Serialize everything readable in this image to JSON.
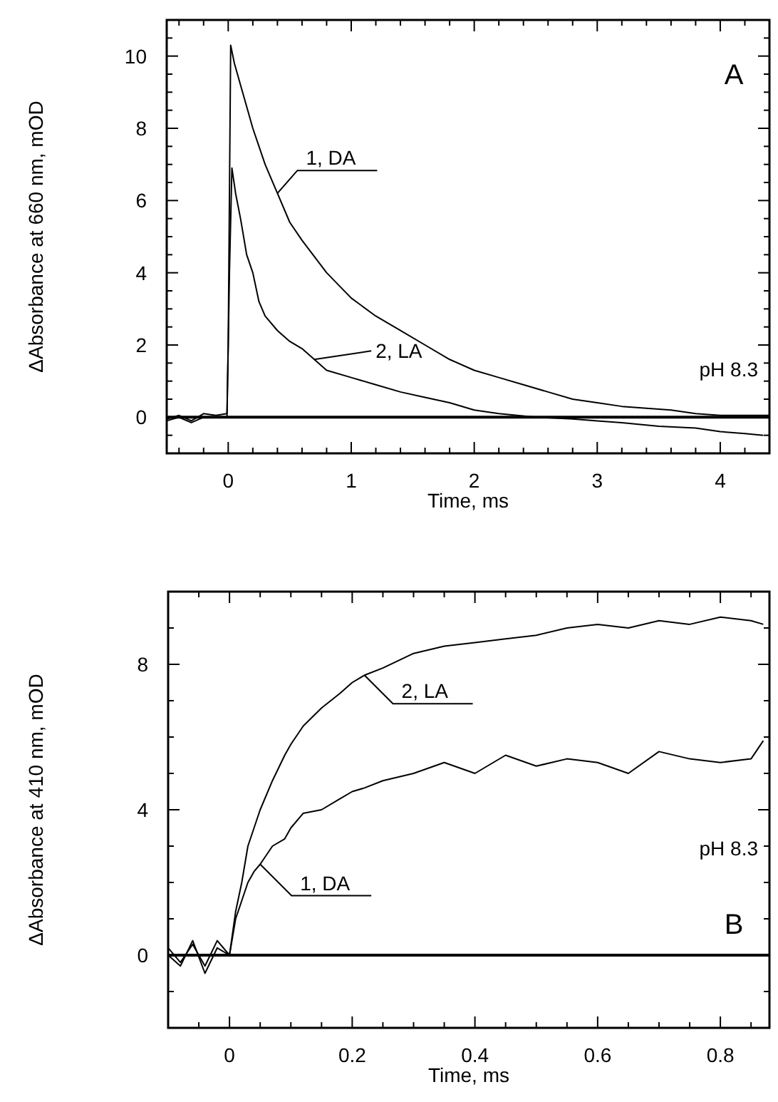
{
  "chart_data": [
    {
      "type": "line",
      "xlabel": "Time, ms",
      "ylabel": "ΔAbsorbance at 660 nm, mOD",
      "xlim": [
        -0.5,
        4.4
      ],
      "ylim": [
        -1,
        11
      ],
      "xticks": [
        {
          "value": -0.4,
          "label": null
        },
        {
          "value": -0.2,
          "label": null
        },
        0,
        {
          "value": 0.2,
          "label": null
        },
        {
          "value": 0.4,
          "label": null
        },
        {
          "value": 0.6,
          "label": null
        },
        {
          "value": 0.8,
          "label": null
        },
        1,
        {
          "value": 1.2,
          "label": null
        },
        {
          "value": 1.4,
          "label": null
        },
        {
          "value": 1.6,
          "label": null
        },
        {
          "value": 1.8,
          "label": null
        },
        2,
        {
          "value": 2.2,
          "label": null
        },
        {
          "value": 2.4,
          "label": null
        },
        {
          "value": 2.6,
          "label": null
        },
        {
          "value": 2.8,
          "label": null
        },
        3,
        {
          "value": 3.2,
          "label": null
        },
        {
          "value": 3.4,
          "label": null
        },
        {
          "value": 3.6,
          "label": null
        },
        {
          "value": 3.8,
          "label": null
        },
        4,
        {
          "value": 4.2,
          "label": null
        }
      ],
      "yticks": [
        {
          "value": -1,
          "label": null
        },
        {
          "value": -0.5,
          "label": null
        },
        0,
        {
          "value": 0.5,
          "label": null
        },
        {
          "value": 1,
          "label": null
        },
        {
          "value": 1.5,
          "label": null
        },
        2,
        {
          "value": 2.5,
          "label": null
        },
        {
          "value": 3,
          "label": null
        },
        {
          "value": 3.5,
          "label": null
        },
        4,
        {
          "value": 4.5,
          "label": null
        },
        {
          "value": 5,
          "label": null
        },
        {
          "value": 5.5,
          "label": null
        },
        6,
        {
          "value": 6.5,
          "label": null
        },
        {
          "value": 7,
          "label": null
        },
        {
          "value": 7.5,
          "label": null
        },
        8,
        {
          "value": 8.5,
          "label": null
        },
        {
          "value": 9,
          "label": null
        },
        {
          "value": 9.5,
          "label": null
        },
        10,
        {
          "value": 10.5,
          "label": null
        }
      ],
      "ref_lines": [
        {
          "axis": "y",
          "value": 0,
          "color": "#000000"
        }
      ],
      "annotations": [
        "A",
        "pH 8.3"
      ],
      "series": [
        {
          "name": "1, DA",
          "color": "#000000",
          "x": [
            -0.5,
            -0.4,
            -0.3,
            -0.2,
            -0.1,
            -0.01,
            0,
            0.02,
            0.05,
            0.1,
            0.15,
            0.2,
            0.3,
            0.4,
            0.5,
            0.6,
            0.8,
            1.0,
            1.2,
            1.4,
            1.6,
            1.8,
            2.0,
            2.2,
            2.4,
            2.6,
            2.8,
            3.0,
            3.2,
            3.4,
            3.6,
            3.8,
            4.0,
            4.2,
            4.4
          ],
          "values": [
            -0.05,
            0.05,
            -0.1,
            0.1,
            0.05,
            0.1,
            2,
            10.3,
            9.8,
            9.2,
            8.6,
            8,
            7,
            6.2,
            5.4,
            4.9,
            4,
            3.3,
            2.8,
            2.4,
            2.0,
            1.6,
            1.3,
            1.1,
            0.9,
            0.7,
            0.5,
            0.4,
            0.3,
            0.25,
            0.2,
            0.1,
            0.05,
            0.05,
            0.05
          ]
        },
        {
          "name": "2, LA",
          "color": "#000000",
          "x": [
            -0.5,
            -0.4,
            -0.3,
            -0.2,
            -0.1,
            -0.01,
            0.01,
            0.03,
            0.06,
            0.1,
            0.15,
            0.2,
            0.25,
            0.3,
            0.4,
            0.5,
            0.6,
            0.7,
            0.8,
            1.0,
            1.2,
            1.4,
            1.6,
            1.8,
            2.0,
            2.2,
            2.5,
            2.8,
            3.0,
            3.2,
            3.5,
            3.8,
            4.0,
            4.2,
            4.35
          ],
          "values": [
            -0.1,
            0,
            -0.15,
            0,
            0,
            0,
            4,
            6.9,
            6.2,
            5.5,
            4.5,
            4,
            3.2,
            2.8,
            2.4,
            2.1,
            1.9,
            1.6,
            1.3,
            1.1,
            0.9,
            0.7,
            0.55,
            0.4,
            0.2,
            0.1,
            0,
            -0.05,
            -0.1,
            -0.15,
            -0.25,
            -0.3,
            -0.4,
            -0.45,
            -0.5
          ]
        }
      ]
    },
    {
      "type": "line",
      "xlabel": "Time, ms",
      "ylabel": "ΔAbsorbance at 410 nm, mOD",
      "xlim": [
        -0.1,
        0.88
      ],
      "ylim": [
        -2,
        10
      ],
      "xticks": [
        {
          "value": -0.05,
          "label": null
        },
        0,
        {
          "value": 0.05,
          "label": null
        },
        {
          "value": 0.1,
          "label": null
        },
        {
          "value": 0.15,
          "label": null
        },
        0.2,
        {
          "value": 0.25,
          "label": null
        },
        {
          "value": 0.3,
          "label": null
        },
        {
          "value": 0.35,
          "label": null
        },
        0.4,
        {
          "value": 0.45,
          "label": null
        },
        {
          "value": 0.5,
          "label": null
        },
        {
          "value": 0.55,
          "label": null
        },
        0.6,
        {
          "value": 0.65,
          "label": null
        },
        {
          "value": 0.7,
          "label": null
        },
        {
          "value": 0.75,
          "label": null
        },
        0.8,
        {
          "value": 0.85,
          "label": null
        }
      ],
      "yticks": [
        {
          "value": -2,
          "label": null
        },
        {
          "value": -1,
          "label": null
        },
        0,
        {
          "value": 1,
          "label": null
        },
        {
          "value": 2,
          "label": null
        },
        {
          "value": 3,
          "label": null
        },
        4,
        {
          "value": 5,
          "label": null
        },
        {
          "value": 6,
          "label": null
        },
        {
          "value": 7,
          "label": null
        },
        8,
        {
          "value": 9,
          "label": null
        }
      ],
      "ref_lines": [
        {
          "axis": "y",
          "value": 0,
          "color": "#000000"
        }
      ],
      "annotations": [
        "B",
        "pH 8.3"
      ],
      "series": [
        {
          "name": "1, DA",
          "color": "#000000",
          "x": [
            -0.1,
            -0.08,
            -0.06,
            -0.04,
            -0.02,
            0,
            0.01,
            0.02,
            0.03,
            0.04,
            0.05,
            0.07,
            0.09,
            0.1,
            0.12,
            0.15,
            0.18,
            0.2,
            0.22,
            0.25,
            0.3,
            0.35,
            0.4,
            0.45,
            0.5,
            0.55,
            0.6,
            0.65,
            0.7,
            0.75,
            0.8,
            0.85,
            0.87
          ],
          "values": [
            0,
            -0.3,
            0.4,
            -0.5,
            0.2,
            0,
            1,
            1.5,
            2,
            2.3,
            2.5,
            3,
            3.2,
            3.5,
            3.9,
            4,
            4.3,
            4.5,
            4.6,
            4.8,
            5,
            5.3,
            5,
            5.5,
            5.2,
            5.4,
            5.3,
            5.0,
            5.6,
            5.4,
            5.3,
            5.4,
            5.9
          ]
        },
        {
          "name": "2, LA",
          "color": "#000000",
          "x": [
            -0.1,
            -0.08,
            -0.06,
            -0.04,
            -0.02,
            0,
            0.01,
            0.02,
            0.03,
            0.04,
            0.05,
            0.07,
            0.09,
            0.1,
            0.12,
            0.15,
            0.18,
            0.2,
            0.22,
            0.25,
            0.3,
            0.35,
            0.4,
            0.45,
            0.5,
            0.55,
            0.6,
            0.65,
            0.7,
            0.75,
            0.8,
            0.85,
            0.87
          ],
          "values": [
            0.2,
            -0.2,
            0.3,
            -0.3,
            0.4,
            0,
            1.2,
            2,
            3,
            3.5,
            4,
            4.8,
            5.5,
            5.8,
            6.3,
            6.8,
            7.2,
            7.5,
            7.7,
            7.9,
            8.3,
            8.5,
            8.6,
            8.7,
            8.8,
            9.0,
            9.1,
            9.0,
            9.2,
            9.1,
            9.3,
            9.2,
            9.1
          ]
        }
      ]
    }
  ]
}
